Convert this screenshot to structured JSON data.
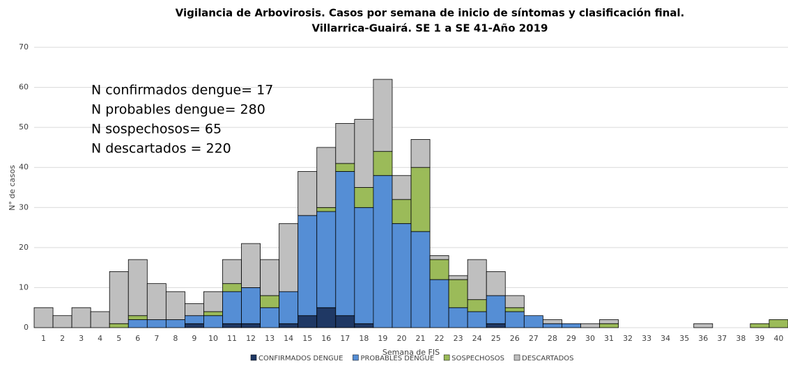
{
  "chart_data": {
    "type": "stacked_bar",
    "title": "Vigilancia de Arbovirosis. Casos por semana de inicio de síntomas y clasificación final.",
    "subtitle": "Villarrica-Guairá. SE 1 a SE 41-Año 2019",
    "x_label": "Semana de FIS",
    "y_label": "N° de casos",
    "annotations": [
      "N confirmados dengue= 17",
      "N probables dengue= 280",
      "N sospechosos= 65",
      "N descartados = 220"
    ],
    "categories": [
      "1",
      "2",
      "3",
      "4",
      "5",
      "6",
      "7",
      "8",
      "9",
      "10",
      "11",
      "12",
      "13",
      "14",
      "15",
      "16",
      "17",
      "18",
      "19",
      "20",
      "21",
      "22",
      "23",
      "24",
      "25",
      "26",
      "27",
      "28",
      "29",
      "30",
      "31",
      "32",
      "33",
      "34",
      "35",
      "36",
      "37",
      "38",
      "39",
      "40"
    ],
    "series": [
      {
        "name": "CONFIRMADOS DENGUE",
        "color": "#1f3864",
        "values": [
          0,
          0,
          0,
          0,
          0,
          0,
          0,
          0,
          1,
          0,
          1,
          1,
          0,
          1,
          3,
          5,
          3,
          1,
          0,
          0,
          0,
          0,
          0,
          0,
          1,
          0,
          0,
          0,
          0,
          0,
          0,
          0,
          0,
          0,
          0,
          0,
          0,
          0,
          0,
          0
        ]
      },
      {
        "name": "PROBABLES DENGUE",
        "color": "#558ed5",
        "values": [
          0,
          0,
          0,
          0,
          0,
          2,
          2,
          2,
          2,
          3,
          8,
          9,
          5,
          8,
          25,
          24,
          36,
          29,
          38,
          26,
          24,
          12,
          5,
          4,
          7,
          4,
          3,
          1,
          1,
          0,
          0,
          0,
          0,
          0,
          0,
          0,
          0,
          0,
          0,
          0
        ]
      },
      {
        "name": "SOSPECHOSOS",
        "color": "#9bbb59",
        "values": [
          0,
          0,
          0,
          0,
          1,
          1,
          0,
          0,
          0,
          1,
          2,
          0,
          3,
          0,
          0,
          1,
          2,
          5,
          6,
          6,
          16,
          5,
          7,
          3,
          0,
          1,
          0,
          0,
          0,
          0,
          1,
          0,
          0,
          0,
          0,
          0,
          0,
          0,
          1,
          2
        ]
      },
      {
        "name": "DESCARTADOS",
        "color": "#bfbfbf",
        "values": [
          5,
          3,
          5,
          4,
          13,
          14,
          9,
          7,
          3,
          5,
          6,
          11,
          9,
          17,
          11,
          15,
          10,
          17,
          18,
          6,
          7,
          1,
          1,
          10,
          6,
          3,
          0,
          1,
          0,
          1,
          1,
          0,
          0,
          0,
          0,
          1,
          0,
          0,
          0,
          0
        ]
      }
    ],
    "ylim": [
      0,
      70
    ],
    "yticks": [
      0,
      10,
      20,
      30,
      40,
      50,
      60,
      70
    ],
    "grid": true
  }
}
